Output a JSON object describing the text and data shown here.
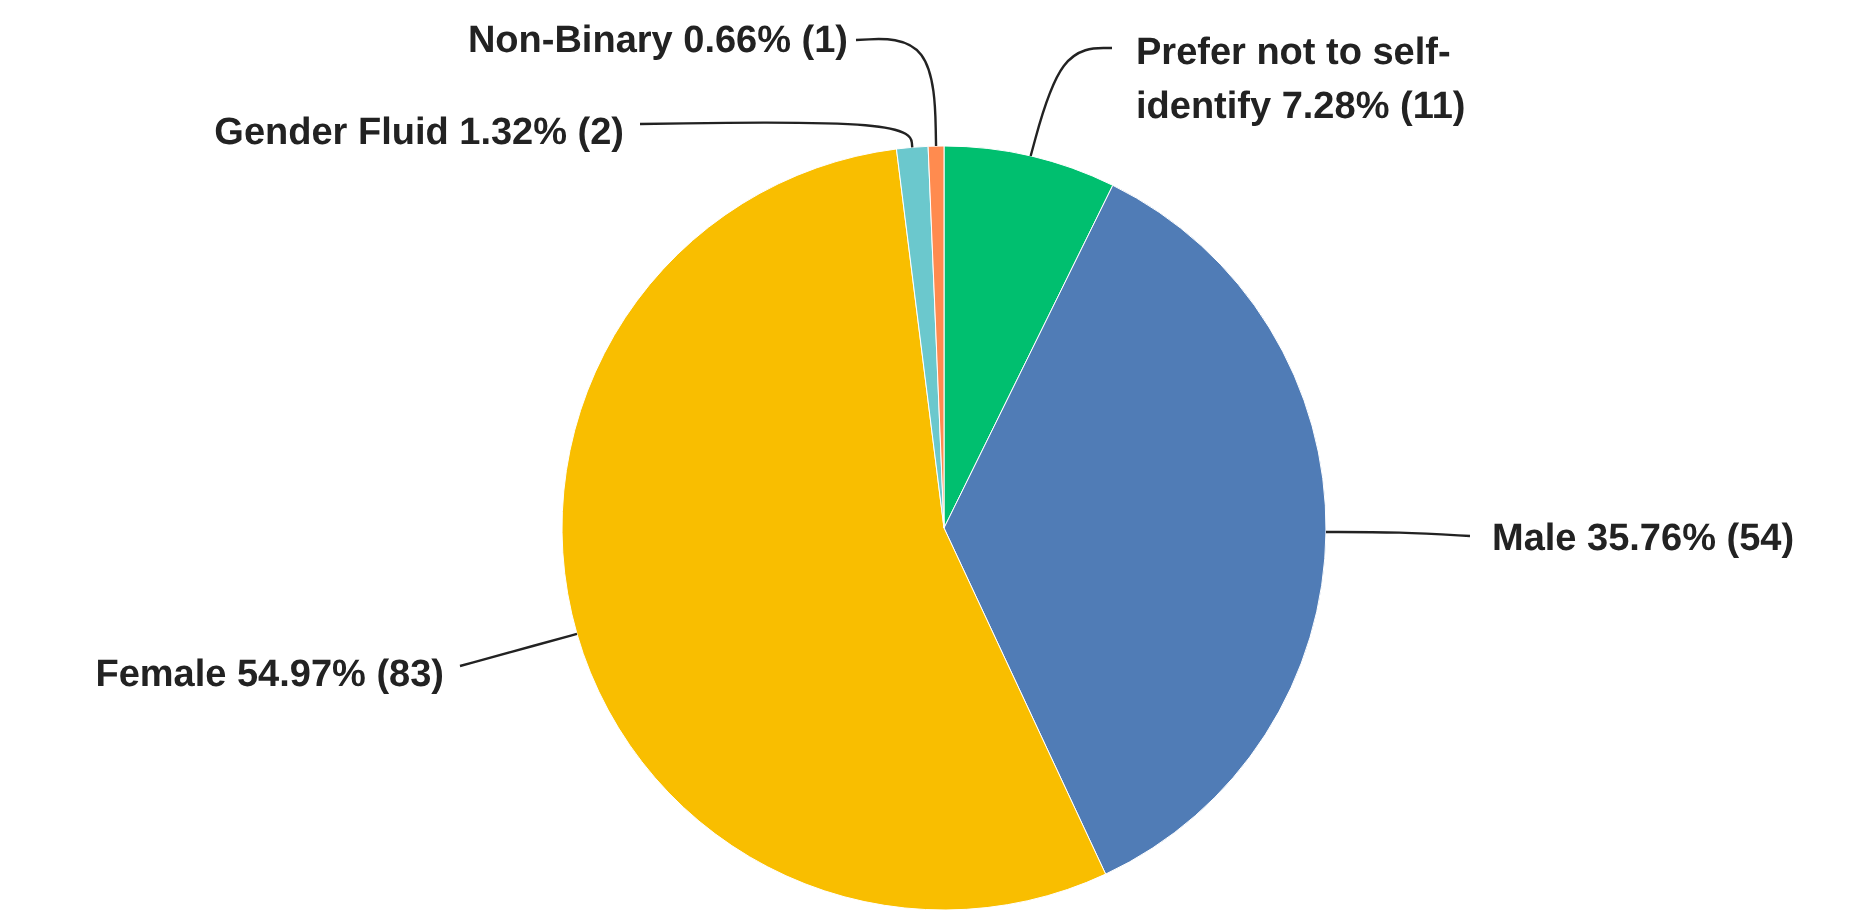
{
  "chart_data": {
    "type": "pie",
    "categories": [
      "Prefer not to self-identify",
      "Male",
      "Female",
      "Gender Fluid",
      "Non-Binary"
    ],
    "values": [
      11,
      54,
      83,
      2,
      1
    ],
    "value_labels": [
      "7.28% (11)",
      "35.76% (54)",
      "54.97% (83)",
      "1.32% (2)",
      "0.66% (1)"
    ],
    "colors": [
      "#00bf6f",
      "#507cb6",
      "#f9be00",
      "#6bc8cd",
      "#ff8b4f"
    ]
  }
}
